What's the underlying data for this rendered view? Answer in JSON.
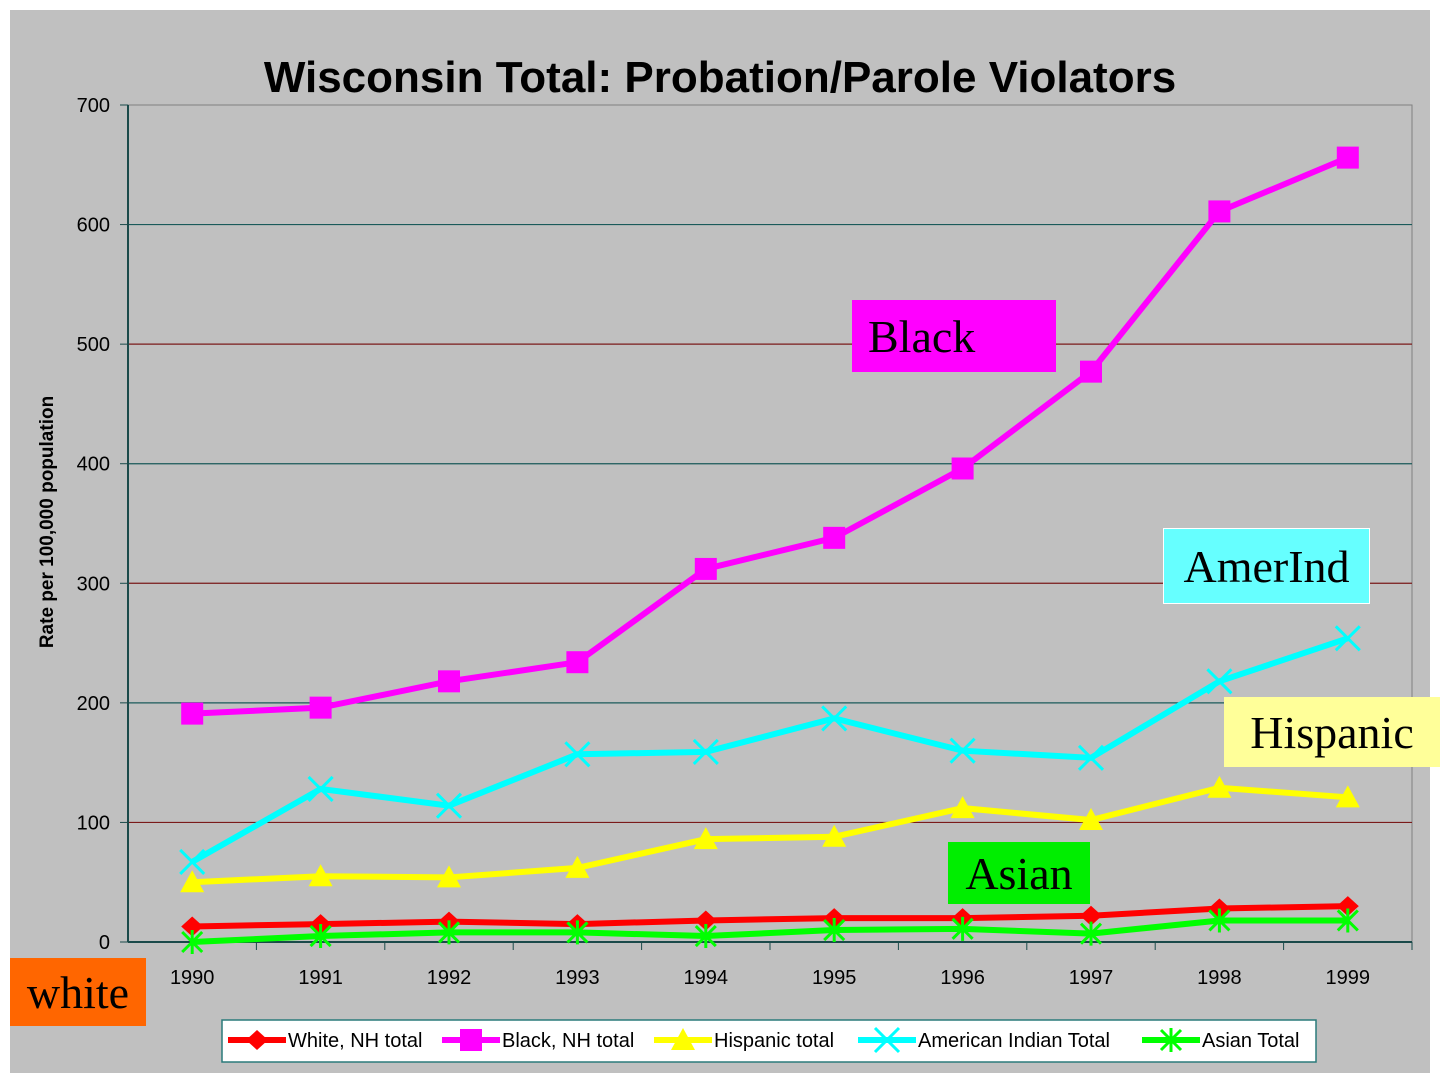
{
  "chart_data": {
    "type": "line",
    "title": "Wisconsin Total: Probation/Parole Violators",
    "xlabel": "",
    "ylabel": "Rate per 100,000 population",
    "ylim": [
      0,
      700
    ],
    "yticks": [
      0,
      100,
      200,
      300,
      400,
      500,
      600,
      700
    ],
    "categories": [
      "1990",
      "1991",
      "1992",
      "1993",
      "1994",
      "1995",
      "1996",
      "1997",
      "1998",
      "1999"
    ],
    "grid": true,
    "legend": "bottom",
    "series": [
      {
        "name": "White, NH total",
        "color": "#ff0000",
        "marker": "diamond",
        "values": [
          13,
          15,
          17,
          15,
          18,
          20,
          20,
          22,
          28,
          30
        ]
      },
      {
        "name": "Black, NH total",
        "color": "#ff00ff",
        "marker": "square",
        "values": [
          191,
          196,
          218,
          234,
          312,
          338,
          396,
          477,
          611,
          656
        ]
      },
      {
        "name": "Hispanic total",
        "color": "#ffff00",
        "marker": "triangle",
        "values": [
          50,
          55,
          54,
          62,
          86,
          88,
          112,
          102,
          129,
          121
        ]
      },
      {
        "name": "American Indian Total",
        "color": "#00ffff",
        "marker": "x",
        "values": [
          67,
          128,
          114,
          157,
          159,
          187,
          160,
          154,
          218,
          254
        ]
      },
      {
        "name": "Asian Total",
        "color": "#00ff00",
        "marker": "star",
        "values": [
          0,
          5,
          8,
          8,
          5,
          10,
          11,
          7,
          18,
          18
        ]
      }
    ],
    "annotations": [
      {
        "text": "Black",
        "bg": "#ff00ff"
      },
      {
        "text": "AmerInd",
        "bg": "#66ffff"
      },
      {
        "text": "Hispanic",
        "bg": "#ffff99"
      },
      {
        "text": "white",
        "bg": "#ff6600"
      },
      {
        "text": "Asian",
        "bg": "#00ee00"
      }
    ]
  }
}
